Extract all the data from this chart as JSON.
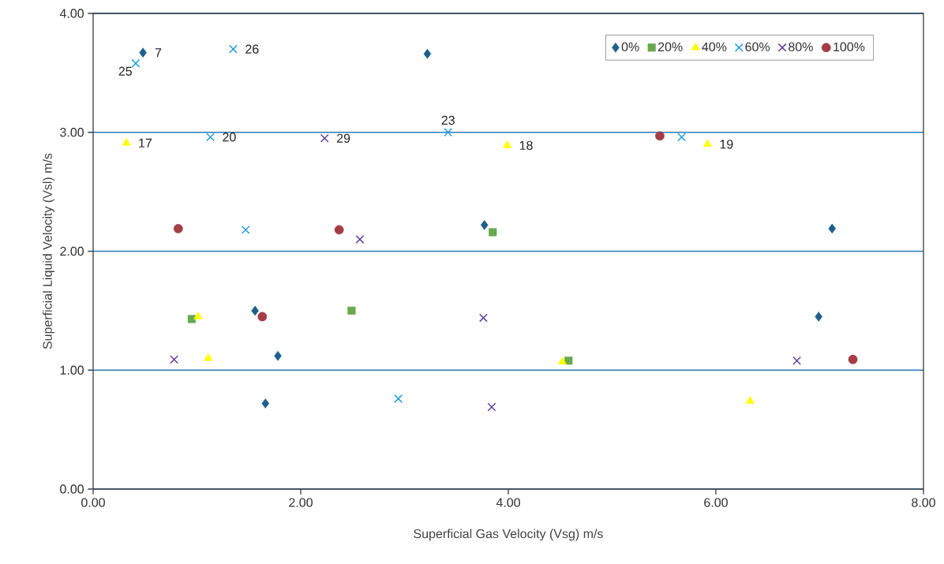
{
  "chart_data": {
    "type": "scatter",
    "xlabel": "Superficial Gas Velocity (Vsg) m/s",
    "ylabel": "Superficial Liquid Velocity (Vsl) m/s",
    "xlim": [
      0,
      8
    ],
    "ylim": [
      0,
      4
    ],
    "xticks": [
      {
        "value": 0,
        "label": "0.00"
      },
      {
        "value": 2,
        "label": "2.00"
      },
      {
        "value": 4,
        "label": "4.00"
      },
      {
        "value": 6,
        "label": "6.00"
      },
      {
        "value": 8,
        "label": "8.00"
      }
    ],
    "yticks": [
      {
        "value": 0,
        "label": "0.00"
      },
      {
        "value": 1,
        "label": "1.00"
      },
      {
        "value": 2,
        "label": "2.00"
      },
      {
        "value": 3,
        "label": "3.00"
      },
      {
        "value": 4,
        "label": "4.00"
      }
    ],
    "grid": "y",
    "legend": "top right",
    "series": [
      {
        "name": "0%",
        "color": "#1f5f8b",
        "marker": "diamond",
        "x": [
          0.48,
          3.22,
          3.77,
          7.12,
          1.56,
          6.99,
          1.78,
          1.66
        ],
        "values": [
          3.67,
          3.66,
          2.22,
          2.19,
          1.5,
          1.45,
          1.12,
          0.72
        ]
      },
      {
        "name": "20%",
        "color": "#6aa84f",
        "marker": "square",
        "x": [
          3.85,
          0.95,
          2.49,
          4.58
        ],
        "values": [
          2.16,
          1.43,
          1.5,
          1.08
        ]
      },
      {
        "name": "40%",
        "color": "#ffff00",
        "marker": "triangle",
        "x": [
          0.32,
          3.99,
          5.92,
          1.01,
          1.11,
          4.52,
          6.33
        ],
        "values": [
          2.91,
          2.89,
          2.9,
          1.45,
          1.1,
          1.07,
          0.74
        ]
      },
      {
        "name": "60%",
        "color": "#1e9be0",
        "marker": "cross",
        "x": [
          0.41,
          1.35,
          1.13,
          3.42,
          5.67,
          1.47,
          2.94
        ],
        "values": [
          3.58,
          3.7,
          2.96,
          3.0,
          2.96,
          2.18,
          0.76
        ]
      },
      {
        "name": "80%",
        "color": "#5b3fa0",
        "marker": "cross",
        "x": [
          2.23,
          2.57,
          3.76,
          0.78,
          3.84,
          6.78
        ],
        "values": [
          2.95,
          2.1,
          1.44,
          1.09,
          0.69,
          1.08
        ]
      },
      {
        "name": "100%",
        "color": "#a33d48",
        "marker": "circle",
        "x": [
          0.82,
          5.46,
          2.37,
          1.63,
          7.32
        ],
        "values": [
          2.19,
          2.97,
          2.18,
          1.45,
          1.09
        ]
      }
    ],
    "annotations": [
      {
        "text": "7",
        "x": 0.48,
        "y": 3.67
      },
      {
        "text": "25",
        "x": 0.41,
        "y": 3.58
      },
      {
        "text": "26",
        "x": 1.35,
        "y": 3.7
      },
      {
        "text": "17",
        "x": 0.32,
        "y": 2.91
      },
      {
        "text": "20",
        "x": 1.13,
        "y": 2.96
      },
      {
        "text": "29",
        "x": 2.23,
        "y": 2.95
      },
      {
        "text": "23",
        "x": 3.42,
        "y": 3.0
      },
      {
        "text": "18",
        "x": 3.99,
        "y": 2.89
      },
      {
        "text": "19",
        "x": 5.92,
        "y": 2.9
      }
    ]
  }
}
